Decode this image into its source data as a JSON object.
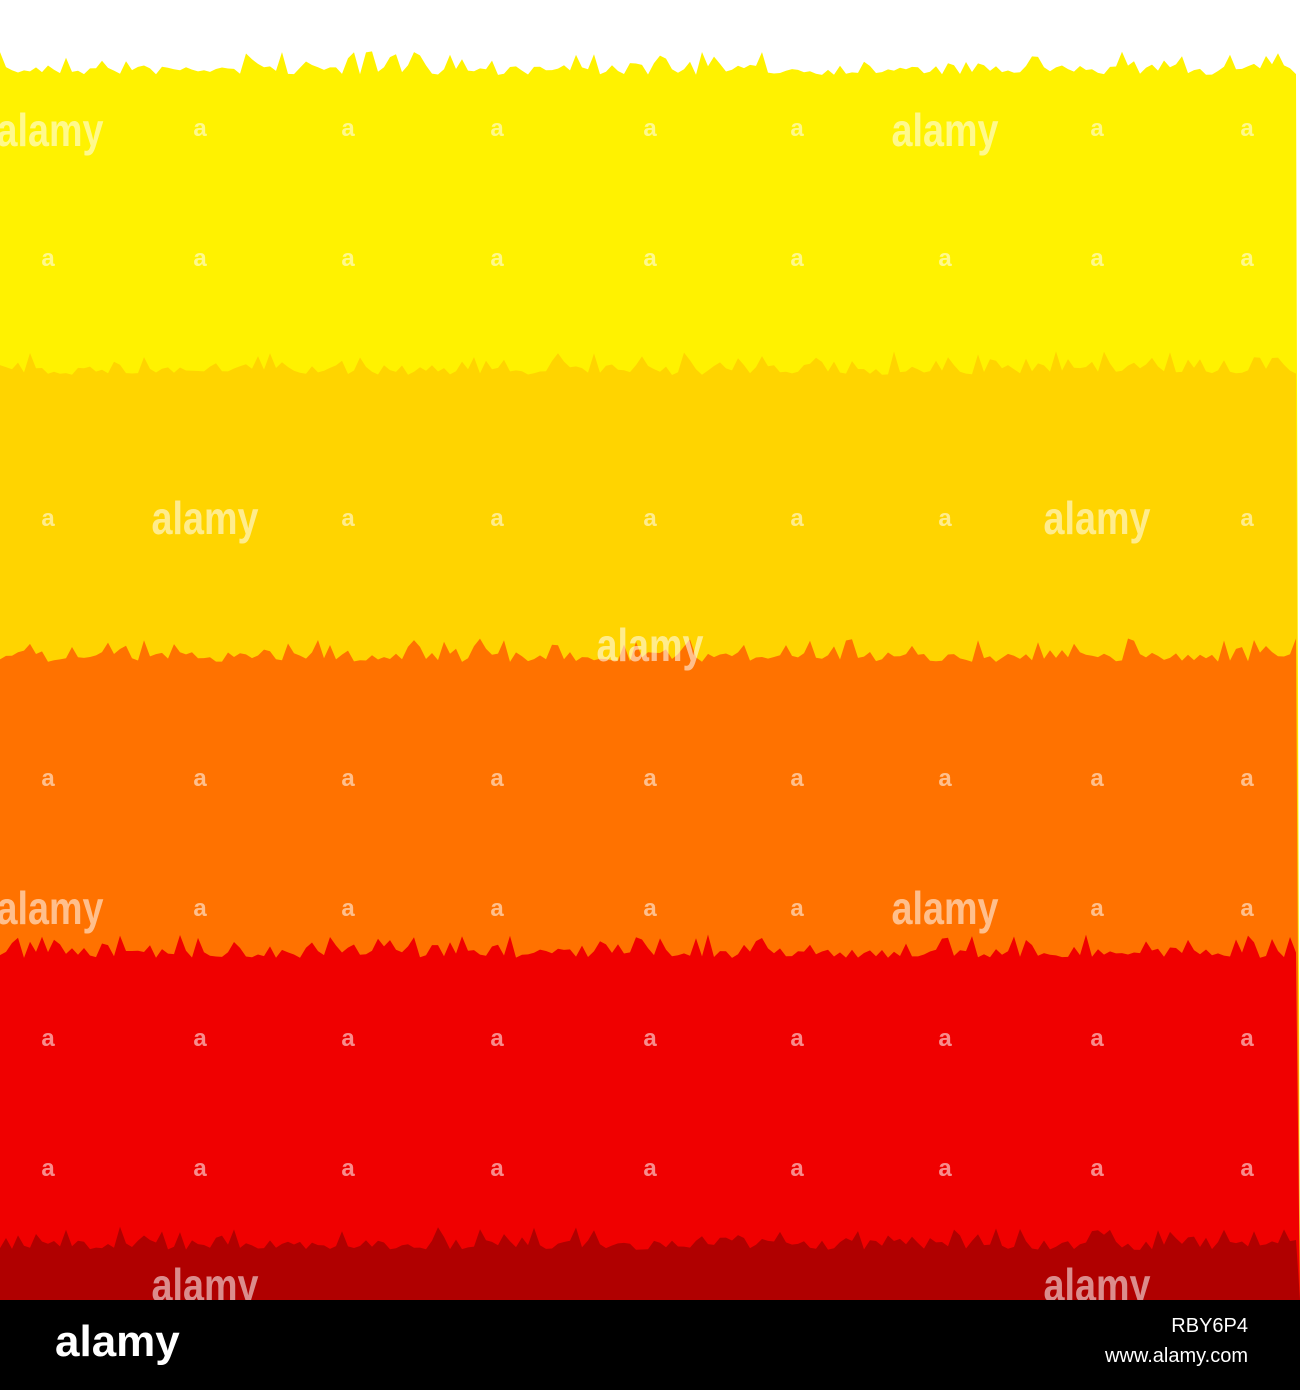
{
  "watermark": "alamy",
  "watermark_mark": "a",
  "footer": {
    "logo": "alamy",
    "image_id": "RBY6P4",
    "url": "www.alamy.com"
  }
}
